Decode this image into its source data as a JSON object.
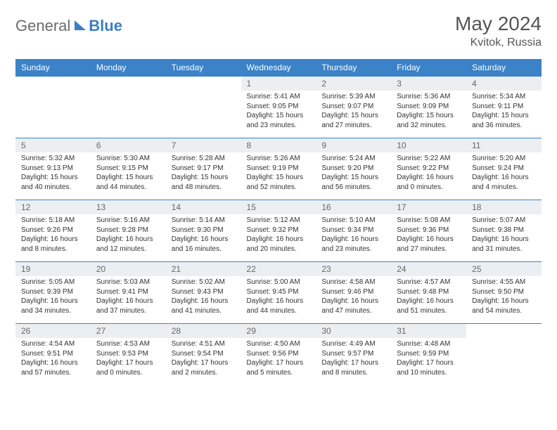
{
  "logo": {
    "general": "General",
    "blue": "Blue"
  },
  "title": "May 2024",
  "location": "Kvitok, Russia",
  "colors": {
    "header_bg": "#3b82c7",
    "header_text": "#ffffff",
    "daynum_bg": "#eceff2",
    "border": "#3b82c7",
    "logo_gray": "#6b6b6b",
    "logo_blue": "#3b7fc4"
  },
  "weekdays": [
    "Sunday",
    "Monday",
    "Tuesday",
    "Wednesday",
    "Thursday",
    "Friday",
    "Saturday"
  ],
  "weeks": [
    [
      null,
      null,
      null,
      {
        "n": "1",
        "sr": "5:41 AM",
        "ss": "9:05 PM",
        "dl": "15 hours and 23 minutes."
      },
      {
        "n": "2",
        "sr": "5:39 AM",
        "ss": "9:07 PM",
        "dl": "15 hours and 27 minutes."
      },
      {
        "n": "3",
        "sr": "5:36 AM",
        "ss": "9:09 PM",
        "dl": "15 hours and 32 minutes."
      },
      {
        "n": "4",
        "sr": "5:34 AM",
        "ss": "9:11 PM",
        "dl": "15 hours and 36 minutes."
      }
    ],
    [
      {
        "n": "5",
        "sr": "5:32 AM",
        "ss": "9:13 PM",
        "dl": "15 hours and 40 minutes."
      },
      {
        "n": "6",
        "sr": "5:30 AM",
        "ss": "9:15 PM",
        "dl": "15 hours and 44 minutes."
      },
      {
        "n": "7",
        "sr": "5:28 AM",
        "ss": "9:17 PM",
        "dl": "15 hours and 48 minutes."
      },
      {
        "n": "8",
        "sr": "5:26 AM",
        "ss": "9:19 PM",
        "dl": "15 hours and 52 minutes."
      },
      {
        "n": "9",
        "sr": "5:24 AM",
        "ss": "9:20 PM",
        "dl": "15 hours and 56 minutes."
      },
      {
        "n": "10",
        "sr": "5:22 AM",
        "ss": "9:22 PM",
        "dl": "16 hours and 0 minutes."
      },
      {
        "n": "11",
        "sr": "5:20 AM",
        "ss": "9:24 PM",
        "dl": "16 hours and 4 minutes."
      }
    ],
    [
      {
        "n": "12",
        "sr": "5:18 AM",
        "ss": "9:26 PM",
        "dl": "16 hours and 8 minutes."
      },
      {
        "n": "13",
        "sr": "5:16 AM",
        "ss": "9:28 PM",
        "dl": "16 hours and 12 minutes."
      },
      {
        "n": "14",
        "sr": "5:14 AM",
        "ss": "9:30 PM",
        "dl": "16 hours and 16 minutes."
      },
      {
        "n": "15",
        "sr": "5:12 AM",
        "ss": "9:32 PM",
        "dl": "16 hours and 20 minutes."
      },
      {
        "n": "16",
        "sr": "5:10 AM",
        "ss": "9:34 PM",
        "dl": "16 hours and 23 minutes."
      },
      {
        "n": "17",
        "sr": "5:08 AM",
        "ss": "9:36 PM",
        "dl": "16 hours and 27 minutes."
      },
      {
        "n": "18",
        "sr": "5:07 AM",
        "ss": "9:38 PM",
        "dl": "16 hours and 31 minutes."
      }
    ],
    [
      {
        "n": "19",
        "sr": "5:05 AM",
        "ss": "9:39 PM",
        "dl": "16 hours and 34 minutes."
      },
      {
        "n": "20",
        "sr": "5:03 AM",
        "ss": "9:41 PM",
        "dl": "16 hours and 37 minutes."
      },
      {
        "n": "21",
        "sr": "5:02 AM",
        "ss": "9:43 PM",
        "dl": "16 hours and 41 minutes."
      },
      {
        "n": "22",
        "sr": "5:00 AM",
        "ss": "9:45 PM",
        "dl": "16 hours and 44 minutes."
      },
      {
        "n": "23",
        "sr": "4:58 AM",
        "ss": "9:46 PM",
        "dl": "16 hours and 47 minutes."
      },
      {
        "n": "24",
        "sr": "4:57 AM",
        "ss": "9:48 PM",
        "dl": "16 hours and 51 minutes."
      },
      {
        "n": "25",
        "sr": "4:55 AM",
        "ss": "9:50 PM",
        "dl": "16 hours and 54 minutes."
      }
    ],
    [
      {
        "n": "26",
        "sr": "4:54 AM",
        "ss": "9:51 PM",
        "dl": "16 hours and 57 minutes."
      },
      {
        "n": "27",
        "sr": "4:53 AM",
        "ss": "9:53 PM",
        "dl": "17 hours and 0 minutes."
      },
      {
        "n": "28",
        "sr": "4:51 AM",
        "ss": "9:54 PM",
        "dl": "17 hours and 2 minutes."
      },
      {
        "n": "29",
        "sr": "4:50 AM",
        "ss": "9:56 PM",
        "dl": "17 hours and 5 minutes."
      },
      {
        "n": "30",
        "sr": "4:49 AM",
        "ss": "9:57 PM",
        "dl": "17 hours and 8 minutes."
      },
      {
        "n": "31",
        "sr": "4:48 AM",
        "ss": "9:59 PM",
        "dl": "17 hours and 10 minutes."
      },
      null
    ]
  ],
  "labels": {
    "sunrise": "Sunrise: ",
    "sunset": "Sunset: ",
    "daylight": "Daylight: "
  }
}
